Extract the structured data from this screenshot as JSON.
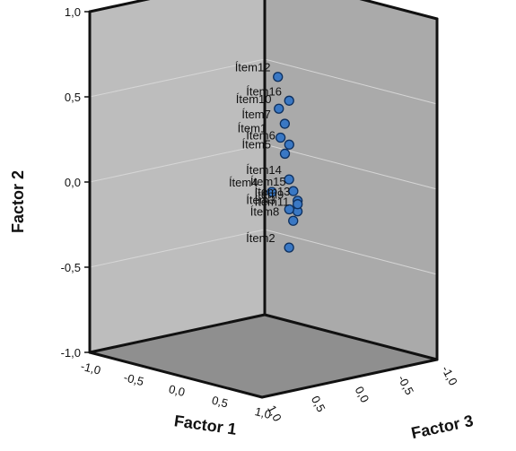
{
  "chart_data": {
    "type": "scatter",
    "projection": "3d",
    "title": "",
    "xlabel": "Factor 1",
    "ylabel": "Factor 2",
    "zlabel": "Factor 3",
    "xlim": [
      -1.0,
      1.0
    ],
    "ylim": [
      -1.0,
      1.0
    ],
    "zlim": [
      -1.0,
      1.0
    ],
    "x_ticks": [
      "-1,0",
      "-0,5",
      "0,0",
      "0,5",
      "1,0"
    ],
    "y_ticks": [
      "1,0",
      "0,5",
      "0,0",
      "-0,5",
      "-1,0"
    ],
    "z_ticks": [
      "1,0",
      "0,5",
      "0,0",
      "-0,5",
      "-1,0"
    ],
    "grid": true,
    "colors": {
      "point": "#3a78c4",
      "back_wall": "#bdbdbd",
      "side_wall": "#aaaaaa",
      "floor": "#8f8f8f"
    },
    "points": [
      {
        "label": "Ítem12",
        "x": 0.25,
        "y": 0.68,
        "z": 0.08
      },
      {
        "label": "Ítem16",
        "x": 0.35,
        "y": 0.55,
        "z": 0.05
      },
      {
        "label": "Ítem10",
        "x": 0.2,
        "y": 0.48,
        "z": 0.02
      },
      {
        "label": "Ítem7",
        "x": 0.35,
        "y": 0.42,
        "z": 0.1
      },
      {
        "label": "Ítem1",
        "x": 0.25,
        "y": 0.32,
        "z": 0.05
      },
      {
        "label": "Ítem6",
        "x": 0.3,
        "y": 0.28,
        "z": 0.0
      },
      {
        "label": "Ítem5",
        "x": 0.25,
        "y": 0.22,
        "z": 0.0
      },
      {
        "label": "Ítem14",
        "x": 0.4,
        "y": 0.1,
        "z": 0.1
      },
      {
        "label": "Ítem15",
        "x": 0.5,
        "y": 0.05,
        "z": 0.15
      },
      {
        "label": "Ítem13",
        "x": 0.55,
        "y": 0.0,
        "z": 0.15
      },
      {
        "label": "Ítem4",
        "x": 0.2,
        "y": 0.0,
        "z": 0.1
      },
      {
        "label": "Ítem11",
        "x": 0.6,
        "y": -0.05,
        "z": 0.2
      },
      {
        "label": "Ítem9",
        "x": 0.55,
        "y": -0.02,
        "z": 0.15
      },
      {
        "label": "Ítem3",
        "x": 0.3,
        "y": -0.1,
        "z": 0.0
      },
      {
        "label": "Ítem8",
        "x": 0.6,
        "y": -0.1,
        "z": 0.25
      },
      {
        "label": "Ítem2",
        "x": 0.4,
        "y": -0.3,
        "z": 0.1
      }
    ]
  }
}
